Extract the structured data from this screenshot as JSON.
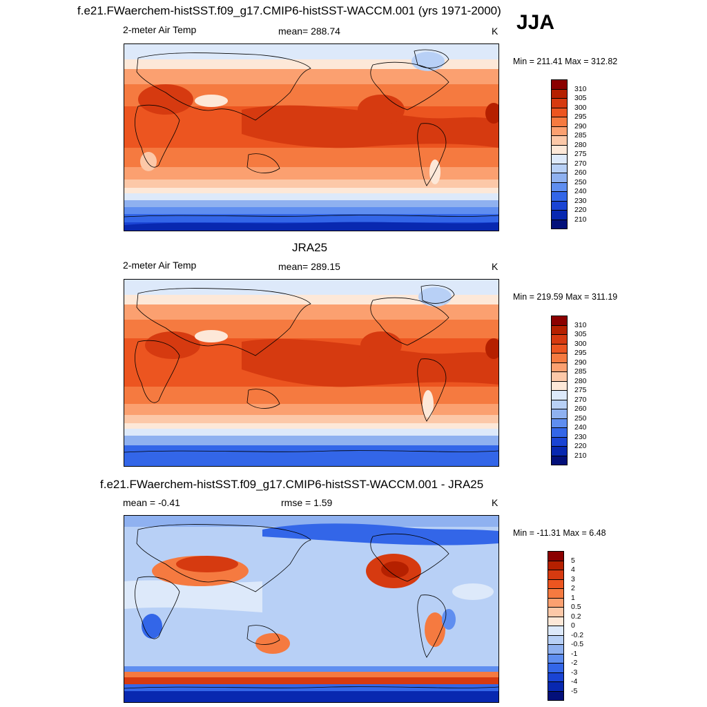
{
  "header": {
    "main_title": "f.e21.FWaerchem-histSST.f09_g17.CMIP6-histSST-WACCM.001 (yrs 1971-2000)",
    "season": "JJA"
  },
  "panels": [
    {
      "title": "",
      "variable": "2-meter Air Temp",
      "stat": "mean= 288.74",
      "units": "K",
      "minmax": "Min = 211.41 Max = 312.82",
      "colorbar": {
        "labels": [
          "310",
          "305",
          "300",
          "295",
          "290",
          "285",
          "280",
          "275",
          "270",
          "260",
          "250",
          "240",
          "230",
          "220",
          "210"
        ],
        "colors": [
          "#8b0000",
          "#b52000",
          "#d63a10",
          "#ec5520",
          "#f57a40",
          "#fba070",
          "#fcc8a8",
          "#fde8d8",
          "#dde9fa",
          "#b8d0f6",
          "#8fb1f0",
          "#5f8ef0",
          "#3366e8",
          "#1a44d4",
          "#0828b0",
          "#03107a"
        ]
      }
    },
    {
      "title": "JRA25",
      "variable": "2-meter Air Temp",
      "stat": "mean= 289.15",
      "units": "K",
      "minmax": "Min = 219.59 Max = 311.19",
      "colorbar": {
        "labels": [
          "310",
          "305",
          "300",
          "295",
          "290",
          "285",
          "280",
          "275",
          "270",
          "260",
          "250",
          "240",
          "230",
          "220",
          "210"
        ],
        "colors": [
          "#8b0000",
          "#b52000",
          "#d63a10",
          "#ec5520",
          "#f57a40",
          "#fba070",
          "#fcc8a8",
          "#fde8d8",
          "#dde9fa",
          "#b8d0f6",
          "#8fb1f0",
          "#5f8ef0",
          "#3366e8",
          "#1a44d4",
          "#0828b0",
          "#03107a"
        ]
      }
    },
    {
      "title": "f.e21.FWaerchem-histSST.f09_g17.CMIP6-histSST-WACCM.001 - JRA25",
      "variable": "mean =  -0.41",
      "stat": "rmse =   1.59",
      "units": "K",
      "minmax": "Min = -11.31 Max =   6.48",
      "colorbar": {
        "labels": [
          "5",
          "4",
          "3",
          "2",
          "1",
          "0.5",
          "0.2",
          "0",
          "-0.2",
          "-0.5",
          "-1",
          "-2",
          "-3",
          "-4",
          "-5"
        ],
        "colors": [
          "#8b0000",
          "#b52000",
          "#d63a10",
          "#ec5520",
          "#f57a40",
          "#fba070",
          "#fcc8a8",
          "#fde8d8",
          "#dde9fa",
          "#b8d0f6",
          "#8fb1f0",
          "#5f8ef0",
          "#3366e8",
          "#1a44d4",
          "#0828b0",
          "#03107a"
        ]
      }
    }
  ]
}
